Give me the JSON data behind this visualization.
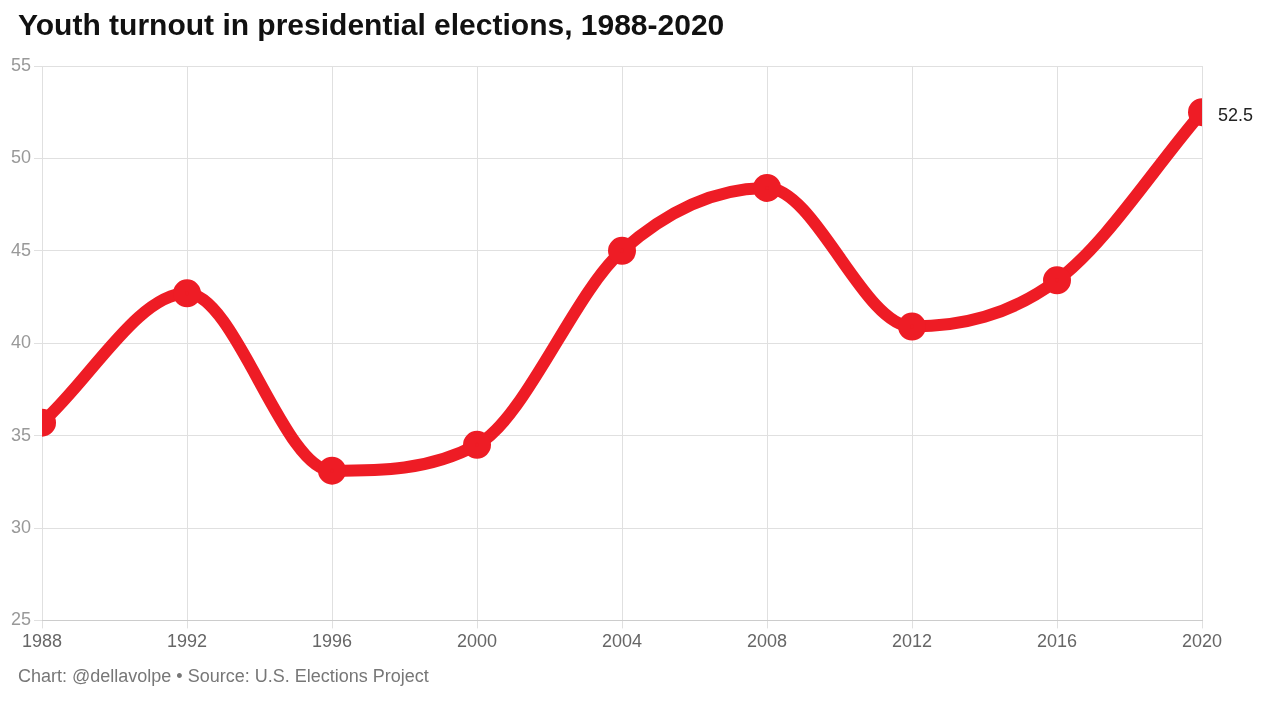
{
  "chart_data": {
    "type": "line",
    "title": "Youth turnout in presidential elections, 1988-2020",
    "x": [
      1988,
      1992,
      1996,
      2000,
      2004,
      2008,
      2012,
      2016,
      2020
    ],
    "series": [
      {
        "color": "#ee1c25",
        "values": [
          35.7,
          42.7,
          33.1,
          34.5,
          45.0,
          48.4,
          40.9,
          43.4,
          52.5
        ],
        "value_labels": [
          null,
          null,
          null,
          null,
          null,
          null,
          null,
          null,
          "52.5"
        ]
      }
    ],
    "xlim": [
      1988,
      2020
    ],
    "xticks": [
      1988,
      1992,
      1996,
      2000,
      2004,
      2008,
      2012,
      2016,
      2020
    ],
    "ylim": [
      25,
      55
    ],
    "yticks": [
      25,
      30,
      35,
      40,
      45,
      50,
      55
    ],
    "grid": true,
    "legend": false,
    "marker": "circle",
    "line_style": "solid",
    "annotations": [
      "Chart: @dellavolpe • Source: U.S. Elections Project"
    ]
  }
}
